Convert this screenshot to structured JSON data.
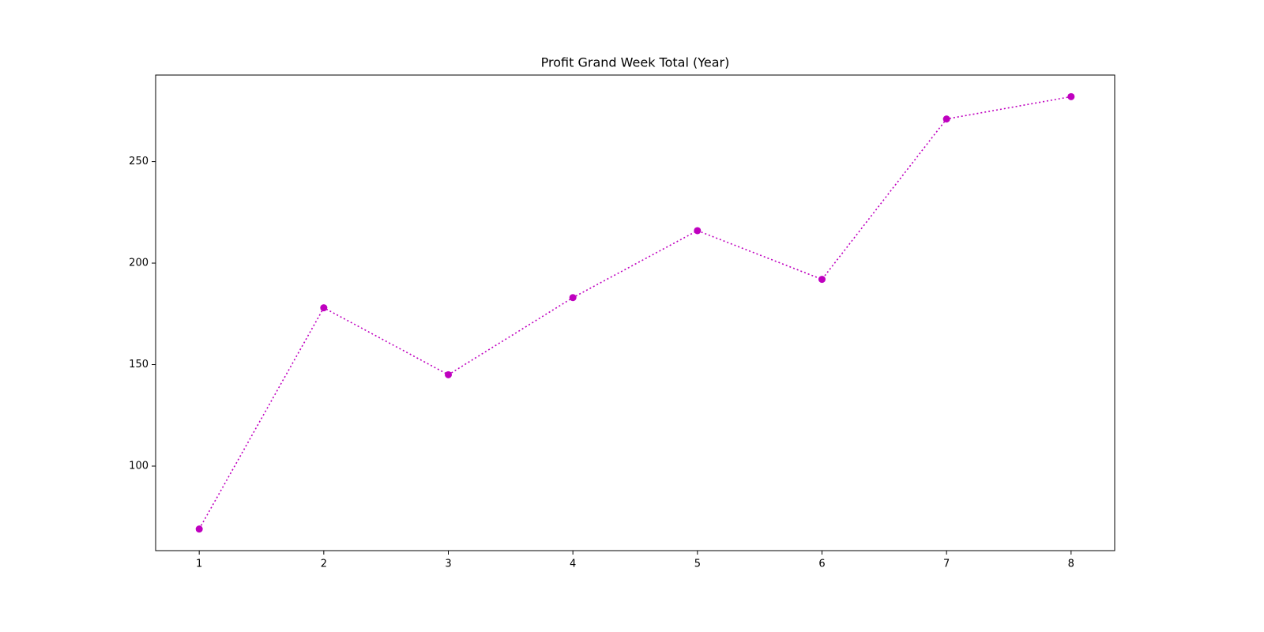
{
  "chart_data": {
    "type": "line",
    "title": "Profit Grand Week Total (Year)",
    "x": [
      1,
      2,
      3,
      4,
      5,
      6,
      7,
      8
    ],
    "series": [
      {
        "color": "#bf00bf",
        "values": [
          69,
          178,
          145,
          183,
          216,
          192,
          271,
          282
        ]
      }
    ],
    "xlim": [
      0.65,
      8.35
    ],
    "xticks": [
      1,
      2,
      3,
      4,
      5,
      6,
      7,
      8
    ],
    "ylim": [
      58.35,
      292.65
    ],
    "yticks": [
      100,
      150,
      200,
      250
    ],
    "line_style": "dotted",
    "marker": "circle",
    "grid": false
  }
}
